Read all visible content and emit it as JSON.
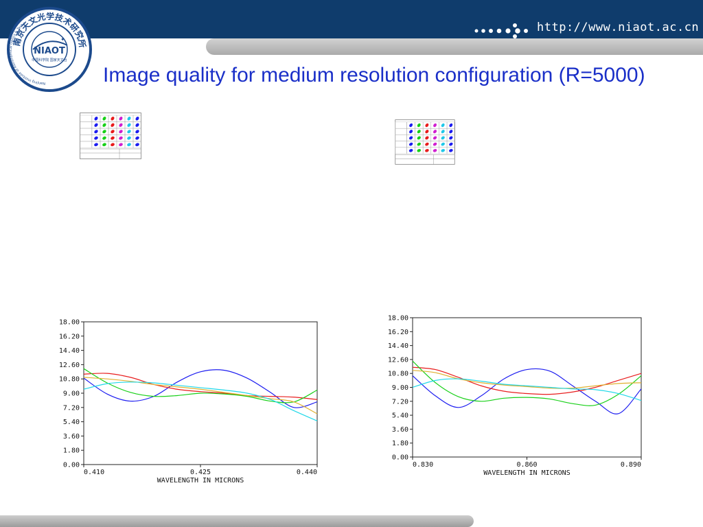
{
  "header": {
    "url": "http://www.niaot.ac.cn",
    "colors": {
      "bar": "#0f3c6c",
      "strip": "#bdbdbd",
      "title": "#1a2fc8"
    }
  },
  "logo": {
    "icon": "niaot-seal-icon",
    "text": "南京天文光学技术研究所",
    "subtext": "Nanjing Institute of Astronomical Optics & Technology,NAOC",
    "center": "NIAOT",
    "center_sub": "中国科学院 国家天文台"
  },
  "slide": {
    "title": "Image quality for medium resolution configuration (R=5000)"
  },
  "spot_diagrams": [
    {
      "icon": "spot-diagram-grid-icon"
    },
    {
      "icon": "spot-diagram-grid-icon"
    }
  ],
  "chart_data": [
    {
      "type": "line",
      "xlabel": "WAVELENGTH IN MICRONS",
      "x_ticks": [
        "0.410",
        "0.425",
        "0.440"
      ],
      "xlim": [
        0.41,
        0.44
      ],
      "y_ticks": [
        "0.00",
        "1.80",
        "3.60",
        "5.40",
        "7.20",
        "9.00",
        "10.80",
        "12.60",
        "14.40",
        "16.20",
        "18.00"
      ],
      "ylim": [
        0,
        18
      ],
      "grid": false,
      "x": [
        0.41,
        0.413,
        0.416,
        0.419,
        0.422,
        0.425,
        0.428,
        0.431,
        0.434,
        0.437,
        0.44
      ],
      "series": [
        {
          "color": "#1c1cf0",
          "values": [
            10.9,
            8.9,
            8.0,
            8.6,
            10.4,
            11.7,
            11.9,
            10.9,
            9.1,
            7.2,
            7.9
          ]
        },
        {
          "color": "#e81c1c",
          "values": [
            11.4,
            11.5,
            11.0,
            10.1,
            9.5,
            9.2,
            9.0,
            8.7,
            8.6,
            8.5,
            8.2
          ]
        },
        {
          "color": "#18d018",
          "values": [
            12.1,
            10.3,
            9.1,
            8.6,
            8.7,
            9.0,
            8.9,
            8.6,
            8.0,
            7.9,
            9.4
          ]
        },
        {
          "color": "#e0b030",
          "values": [
            11.0,
            10.8,
            10.5,
            10.1,
            9.8,
            9.5,
            9.1,
            8.7,
            8.3,
            7.9,
            6.4
          ]
        },
        {
          "color": "#20d8e8",
          "values": [
            9.5,
            10.2,
            10.4,
            10.3,
            10.0,
            9.7,
            9.4,
            9.0,
            8.2,
            6.8,
            5.5
          ]
        }
      ]
    },
    {
      "type": "line",
      "xlabel": "WAVELENGTH IN MICRONS",
      "x_ticks": [
        "0.830",
        "0.860",
        "0.890"
      ],
      "xlim": [
        0.83,
        0.89
      ],
      "y_ticks": [
        "0.00",
        "1.80",
        "3.60",
        "5.40",
        "7.20",
        "9.00",
        "10.80",
        "12.60",
        "14.40",
        "16.20",
        "18.00"
      ],
      "ylim": [
        0,
        18
      ],
      "grid": false,
      "x": [
        0.83,
        0.836,
        0.842,
        0.848,
        0.854,
        0.86,
        0.866,
        0.872,
        0.878,
        0.884,
        0.89
      ],
      "series": [
        {
          "color": "#1c1cf0",
          "values": [
            10.5,
            7.9,
            6.4,
            7.9,
            10.1,
            11.3,
            11.1,
            9.2,
            7.2,
            5.6,
            8.8
          ]
        },
        {
          "color": "#e81c1c",
          "values": [
            11.6,
            11.3,
            10.3,
            9.2,
            8.5,
            8.2,
            8.1,
            8.4,
            9.0,
            9.9,
            10.8
          ]
        },
        {
          "color": "#18d018",
          "values": [
            12.4,
            9.6,
            7.8,
            7.2,
            7.6,
            7.7,
            7.5,
            6.9,
            6.7,
            8.1,
            10.5
          ]
        },
        {
          "color": "#e0b030",
          "values": [
            11.2,
            10.9,
            10.1,
            9.6,
            9.3,
            9.1,
            8.9,
            8.9,
            9.2,
            9.5,
            9.6
          ]
        },
        {
          "color": "#20d8e8",
          "values": [
            9.0,
            9.9,
            10.1,
            9.8,
            9.4,
            9.2,
            9.0,
            8.8,
            8.7,
            8.2,
            7.3
          ]
        }
      ]
    }
  ]
}
